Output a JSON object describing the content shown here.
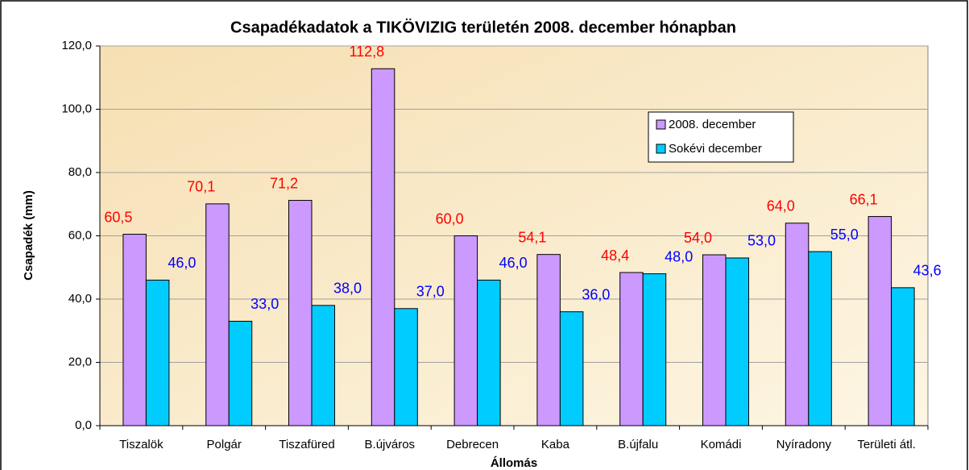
{
  "chart_data": {
    "type": "bar",
    "title": "Csapadékadatok a TIKÖVIZIG területén 2008. december hónapban",
    "x_label": "Állomás",
    "y_label": "Csapadék (mm)",
    "categories": [
      "Tiszalök",
      "Polgár",
      "Tiszafüred",
      "B.újváros",
      "Debrecen",
      "Kaba",
      "B.újfalu",
      "Komádi",
      "Nyíradony",
      "Területi átl."
    ],
    "series": [
      {
        "name": "2008. december",
        "color": "#cc99ff",
        "label_color": "#ff0000",
        "values": [
          60.5,
          70.1,
          71.2,
          112.8,
          60.0,
          54.1,
          48.4,
          54.0,
          64.0,
          66.1
        ],
        "value_labels": [
          "60,5",
          "70,1",
          "71,2",
          "112,8",
          "60,0",
          "54,1",
          "48,4",
          "54,0",
          "64,0",
          "66,1"
        ]
      },
      {
        "name": "Sokévi december",
        "color": "#00ccff",
        "label_color": "#0000ff",
        "values": [
          46.0,
          33.0,
          38.0,
          37.0,
          46.0,
          36.0,
          48.0,
          53.0,
          55.0,
          43.6
        ],
        "value_labels": [
          "46,0",
          "33,0",
          "38,0",
          "37,0",
          "46,0",
          "36,0",
          "48,0",
          "53,0",
          "55,0",
          "43,6"
        ]
      }
    ],
    "ylim": [
      0,
      120
    ],
    "yticks": [
      {
        "value": 0,
        "label": "0,0"
      },
      {
        "value": 20,
        "label": "20,0"
      },
      {
        "value": 40,
        "label": "40,0"
      },
      {
        "value": 60,
        "label": "60,0"
      },
      {
        "value": 80,
        "label": "80,0"
      },
      {
        "value": 100,
        "label": "100,0"
      },
      {
        "value": 120,
        "label": "120,0"
      }
    ],
    "grid": true
  }
}
